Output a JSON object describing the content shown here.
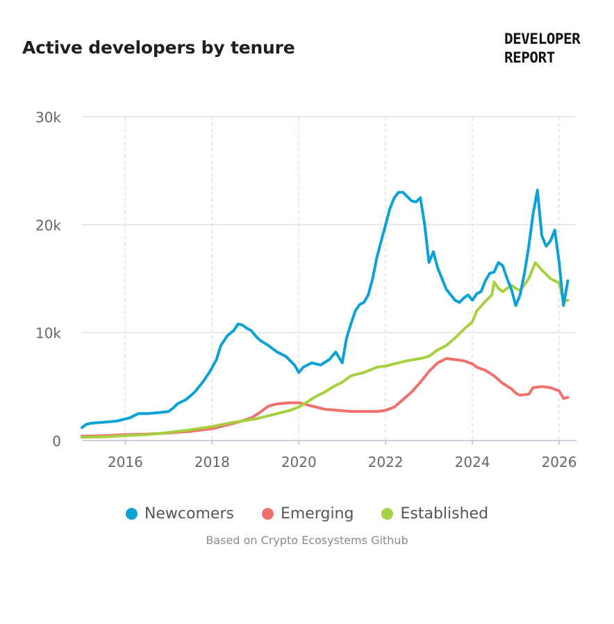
{
  "brand": {
    "line1": "DEVELOPER",
    "line2": "REPORT"
  },
  "source": "Based on Crypto Ecosystems Github",
  "chart_data": {
    "type": "line",
    "title": "Active developers by tenure",
    "xlabel": "",
    "ylabel": "",
    "xlim": [
      2015.0,
      2026.4
    ],
    "ylim": [
      0,
      30000
    ],
    "x_ticks": [
      2016,
      2018,
      2020,
      2022,
      2024,
      2026
    ],
    "x_tick_labels": [
      "2016",
      "2018",
      "2020",
      "2022",
      "2024",
      "2026"
    ],
    "y_ticks": [
      0,
      10000,
      20000,
      30000
    ],
    "y_tick_labels": [
      "0",
      "10k",
      "20k",
      "30k"
    ],
    "grid": true,
    "legend": "bottom-center",
    "series": [
      {
        "name": "Newcomers",
        "color": "#0aa2d6",
        "x": [
          2015.0,
          2015.1,
          2015.2,
          2015.5,
          2015.8,
          2016.0,
          2016.1,
          2016.2,
          2016.3,
          2016.5,
          2016.8,
          2017.0,
          2017.1,
          2017.2,
          2017.4,
          2017.6,
          2017.8,
          2017.95,
          2018.1,
          2018.2,
          2018.35,
          2018.5,
          2018.6,
          2018.7,
          2018.8,
          2018.9,
          2019.0,
          2019.1,
          2019.3,
          2019.5,
          2019.7,
          2019.8,
          2019.9,
          2020.0,
          2020.1,
          2020.3,
          2020.5,
          2020.7,
          2020.85,
          2021.0,
          2021.1,
          2021.2,
          2021.3,
          2021.4,
          2021.5,
          2021.6,
          2021.7,
          2021.8,
          2021.9,
          2022.0,
          2022.1,
          2022.2,
          2022.3,
          2022.4,
          2022.5,
          2022.6,
          2022.7,
          2022.8,
          2022.9,
          2023.0,
          2023.1,
          2023.2,
          2023.3,
          2023.4,
          2023.5,
          2023.6,
          2023.7,
          2023.8,
          2023.9,
          2024.0,
          2024.1,
          2024.2,
          2024.3,
          2024.4,
          2024.5,
          2024.6,
          2024.7,
          2024.8,
          2024.9,
          2025.0,
          2025.1,
          2025.2,
          2025.3,
          2025.4,
          2025.5,
          2025.6,
          2025.7,
          2025.8,
          2025.9,
          2026.0,
          2026.1,
          2026.2
        ],
        "values": [
          1200,
          1500,
          1600,
          1700,
          1800,
          2000,
          2100,
          2300,
          2500,
          2500,
          2600,
          2700,
          3000,
          3400,
          3800,
          4500,
          5500,
          6400,
          7500,
          8800,
          9700,
          10200,
          10800,
          10700,
          10400,
          10200,
          9700,
          9300,
          8800,
          8200,
          7800,
          7400,
          7000,
          6300,
          6800,
          7200,
          7000,
          7500,
          8200,
          7200,
          9500,
          10800,
          12000,
          12600,
          12800,
          13500,
          15000,
          17000,
          18500,
          20000,
          21500,
          22500,
          23000,
          23000,
          22600,
          22200,
          22100,
          22500,
          20000,
          16500,
          17500,
          16000,
          15000,
          14000,
          13500,
          13000,
          12800,
          13200,
          13500,
          13000,
          13600,
          13800,
          14800,
          15500,
          15600,
          16500,
          16200,
          15000,
          14000,
          12500,
          13500,
          15500,
          18000,
          21000,
          23200,
          19000,
          18000,
          18500,
          19500,
          16500,
          12500,
          14800
        ]
      },
      {
        "name": "Emerging",
        "color": "#f0706c",
        "x": [
          2015.0,
          2015.5,
          2016.0,
          2016.5,
          2017.0,
          2017.5,
          2018.0,
          2018.3,
          2018.6,
          2018.9,
          2019.1,
          2019.3,
          2019.5,
          2019.8,
          2020.0,
          2020.3,
          2020.6,
          2020.9,
          2021.2,
          2021.5,
          2021.8,
          2022.0,
          2022.2,
          2022.4,
          2022.6,
          2022.8,
          2023.0,
          2023.2,
          2023.4,
          2023.6,
          2023.8,
          2024.0,
          2024.1,
          2024.3,
          2024.5,
          2024.7,
          2024.9,
          2025.0,
          2025.1,
          2025.3,
          2025.4,
          2025.6,
          2025.8,
          2026.0,
          2026.1,
          2026.2
        ],
        "values": [
          400,
          450,
          550,
          600,
          700,
          850,
          1100,
          1400,
          1700,
          2100,
          2600,
          3200,
          3400,
          3500,
          3500,
          3200,
          2900,
          2800,
          2700,
          2700,
          2700,
          2800,
          3100,
          3800,
          4500,
          5400,
          6400,
          7200,
          7600,
          7500,
          7400,
          7100,
          6800,
          6500,
          6000,
          5300,
          4800,
          4400,
          4200,
          4300,
          4900,
          5000,
          4900,
          4600,
          3900,
          4000
        ]
      },
      {
        "name": "Established",
        "color": "#a5d040",
        "x": [
          2015.0,
          2015.5,
          2016.0,
          2016.5,
          2017.0,
          2017.5,
          2018.0,
          2018.5,
          2019.0,
          2019.5,
          2019.8,
          2020.0,
          2020.2,
          2020.4,
          2020.6,
          2020.8,
          2021.0,
          2021.2,
          2021.5,
          2021.8,
          2022.0,
          2022.2,
          2022.5,
          2022.8,
          2023.0,
          2023.2,
          2023.4,
          2023.6,
          2023.8,
          2024.0,
          2024.1,
          2024.3,
          2024.45,
          2024.5,
          2024.6,
          2024.7,
          2024.8,
          2024.9,
          2025.0,
          2025.1,
          2025.3,
          2025.45,
          2025.6,
          2025.8,
          2026.0,
          2026.1,
          2026.2
        ],
        "values": [
          300,
          350,
          450,
          550,
          750,
          1000,
          1300,
          1700,
          2000,
          2500,
          2800,
          3100,
          3600,
          4100,
          4500,
          5000,
          5400,
          6000,
          6300,
          6800,
          6900,
          7100,
          7400,
          7600,
          7800,
          8400,
          8800,
          9500,
          10300,
          11000,
          12000,
          12900,
          13500,
          14700,
          14100,
          13800,
          14100,
          14400,
          14100,
          13900,
          15000,
          16500,
          15800,
          15000,
          14600,
          12900,
          13000
        ]
      }
    ]
  }
}
